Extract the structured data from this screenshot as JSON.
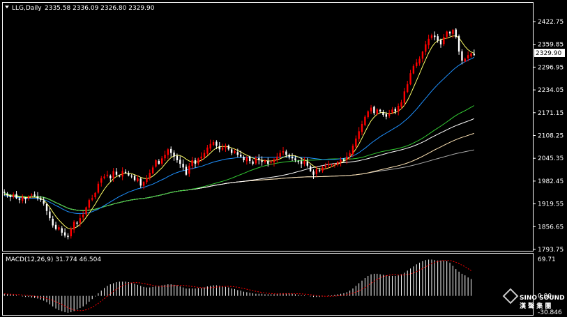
{
  "header": {
    "symbol": "LLG,Daily",
    "ohlc": "2335.58 2336.09 2326.80 2329.90"
  },
  "macd_header": "MACD(12,26,9) 31.774 46.504",
  "current_price_label": "2329.90",
  "logo": {
    "line1": "SINO SOUND",
    "line2": "漢 聲 集 團",
    "icon": "diamond-logo-icon"
  },
  "colors": {
    "background": "#000000",
    "up_candle": "#ff0000",
    "down_candle": "#ffffff",
    "ma_fast": "#ffff66",
    "ma_mid": "#1e90ff",
    "ma_slow1": "#33cc33",
    "ma_slow2": "#ffffff",
    "ma_long": "#ffe4b5",
    "ma_longest": "#aaaaaa",
    "macd_hist": "#ffffff",
    "macd_signal": "#ff0000"
  },
  "chart_data": [
    {
      "type": "candlestick",
      "title": "LLG,Daily",
      "ylim": [
        1793.75,
        2440
      ],
      "y_ticks": [
        "2422.75",
        "2359.85",
        "2296.95",
        "2234.05",
        "2171.15",
        "2108.25",
        "2045.35",
        "1982.45",
        "1919.55",
        "1856.65",
        "1793.75"
      ],
      "y_tick_values": [
        2422.75,
        2359.85,
        2296.95,
        2234.05,
        2171.15,
        2108.25,
        2045.35,
        1982.45,
        1919.55,
        1856.65,
        1793.75
      ],
      "closes": [
        1950,
        1943,
        1938,
        1945,
        1935,
        1930,
        1938,
        1932,
        1940,
        1945,
        1942,
        1935,
        1930,
        1920,
        1900,
        1880,
        1860,
        1850,
        1855,
        1840,
        1832,
        1828,
        1850,
        1870,
        1865,
        1880,
        1890,
        1910,
        1930,
        1935,
        1950,
        1975,
        1990,
        1995,
        2000,
        1990,
        2010,
        2000,
        1995,
        2010,
        2005,
        1998,
        1995,
        1985,
        1990,
        1970,
        1980,
        1990,
        2005,
        2020,
        2040,
        2030,
        2045,
        2055,
        2070,
        2060,
        2050,
        2040,
        2030,
        2020,
        2000,
        2025,
        2040,
        2030,
        2045,
        2050,
        2060,
        2075,
        2085,
        2090,
        2080,
        2070,
        2075,
        2080,
        2070,
        2060,
        2065,
        2055,
        2050,
        2040,
        2048,
        2038,
        2030,
        2045,
        2040,
        2035,
        2040,
        2030,
        2035,
        2042,
        2050,
        2060,
        2065,
        2055,
        2048,
        2045,
        2040,
        2035,
        2030,
        2038,
        2025,
        2010,
        2000,
        2015,
        2010,
        2020,
        2025,
        2030,
        2028,
        2030,
        2035,
        2040,
        2038,
        2050,
        2060,
        2080,
        2100,
        2120,
        2140,
        2160,
        2175,
        2185,
        2170,
        2180,
        2175,
        2165,
        2160,
        2170,
        2180,
        2175,
        2190,
        2200,
        2230,
        2250,
        2280,
        2300,
        2310,
        2320,
        2340,
        2360,
        2375,
        2385,
        2380,
        2370,
        2360,
        2380,
        2395,
        2390,
        2400,
        2380,
        2340,
        2315,
        2320,
        2330,
        2335,
        2329.9
      ],
      "ma_fast": [
        1945,
        1944,
        1942,
        1941,
        1940,
        1939,
        1938,
        1937,
        1937,
        1938,
        1938,
        1937,
        1935,
        1930,
        1921,
        1910,
        1897,
        1885,
        1875,
        1866,
        1858,
        1852,
        1850,
        1852,
        1856,
        1863,
        1871,
        1882,
        1894,
        1906,
        1919,
        1933,
        1947,
        1960,
        1971,
        1980,
        1989,
        1995,
        1999,
        2002,
        2004,
        2004,
        2003,
        2000,
        1997,
        1993,
        1990,
        1989,
        1991,
        1996,
        2003,
        2011,
        2019,
        2029,
        2039,
        2047,
        2052,
        2054,
        2053,
        2049,
        2043,
        2038,
        2035,
        2035,
        2036,
        2040,
        2045,
        2052,
        2060,
        2068,
        2074,
        2077,
        2078,
        2078,
        2077,
        2074,
        2071,
        2067,
        2063,
        2058,
        2054,
        2050,
        2046,
        2043,
        2041,
        2040,
        2039,
        2038,
        2038,
        2039,
        2041,
        2044,
        2048,
        2051,
        2053,
        2053,
        2052,
        2049,
        2045,
        2041,
        2037,
        2031,
        2024,
        2019,
        2016,
        2015,
        2016,
        2019,
        2022,
        2026,
        2029,
        2033,
        2037,
        2042,
        2049,
        2059,
        2071,
        2085,
        2101,
        2118,
        2134,
        2149,
        2159,
        2167,
        2171,
        2172,
        2170,
        2169,
        2170,
        2172,
        2176,
        2182,
        2192,
        2205,
        2222,
        2241,
        2260,
        2279,
        2299,
        2318,
        2336,
        2352,
        2363,
        2370,
        2373,
        2375,
        2377,
        2380,
        2383,
        2383,
        2378,
        2366,
        2354,
        2345,
        2339,
        2335
      ],
      "ma_mid": [
        1942,
        1941,
        1940,
        1939,
        1938,
        1937,
        1936,
        1935,
        1935,
        1935,
        1935,
        1934,
        1933,
        1931,
        1928,
        1924,
        1920,
        1915,
        1911,
        1906,
        1902,
        1898,
        1896,
        1894,
        1893,
        1893,
        1893,
        1894,
        1895,
        1898,
        1901,
        1905,
        1910,
        1915,
        1920,
        1925,
        1930,
        1935,
        1940,
        1944,
        1948,
        1952,
        1955,
        1958,
        1961,
        1963,
        1965,
        1968,
        1971,
        1974,
        1978,
        1982,
        1986,
        1990,
        1995,
        1999,
        2003,
        2006,
        2009,
        2011,
        2013,
        2015,
        2017,
        2019,
        2021,
        2023,
        2026,
        2029,
        2032,
        2035,
        2037,
        2039,
        2041,
        2043,
        2044,
        2045,
        2046,
        2047,
        2047,
        2048,
        2048,
        2048,
        2048,
        2048,
        2048,
        2048,
        2048,
        2048,
        2048,
        2048,
        2048,
        2048,
        2049,
        2049,
        2049,
        2049,
        2049,
        2049,
        2048,
        2048,
        2047,
        2046,
        2045,
        2044,
        2043,
        2042,
        2042,
        2042,
        2042,
        2042,
        2043,
        2044,
        2045,
        2047,
        2049,
        2052,
        2056,
        2061,
        2067,
        2073,
        2080,
        2087,
        2093,
        2099,
        2105,
        2110,
        2115,
        2120,
        2125,
        2130,
        2135,
        2141,
        2148,
        2155,
        2163,
        2172,
        2181,
        2191,
        2201,
        2211,
        2221,
        2231,
        2240,
        2249,
        2257,
        2265,
        2273,
        2281,
        2289,
        2296,
        2302,
        2307,
        2312,
        2316,
        2320,
        2324
      ],
      "macd_hist": [
        4,
        3,
        3,
        2,
        1,
        0,
        -1,
        -2,
        -2,
        -3,
        -4,
        -5,
        -7,
        -9,
        -12,
        -16,
        -20,
        -24,
        -27,
        -29,
        -31,
        -32,
        -31,
        -29,
        -26,
        -23,
        -20,
        -16,
        -11,
        -6,
        -1,
        5,
        10,
        15,
        19,
        22,
        24,
        26,
        27,
        27,
        27,
        26,
        25,
        23,
        21,
        19,
        17,
        16,
        16,
        17,
        18,
        19,
        20,
        21,
        22,
        22,
        21,
        20,
        18,
        16,
        14,
        14,
        14,
        14,
        15,
        15,
        16,
        18,
        19,
        20,
        20,
        19,
        18,
        17,
        16,
        14,
        13,
        11,
        10,
        8,
        7,
        6,
        5,
        4,
        4,
        4,
        3,
        3,
        3,
        3,
        4,
        5,
        5,
        5,
        5,
        4,
        3,
        2,
        1,
        1,
        0,
        -1,
        -2,
        -2,
        -2,
        -1,
        0,
        1,
        1,
        2,
        3,
        4,
        5,
        7,
        10,
        14,
        19,
        24,
        29,
        34,
        38,
        41,
        42,
        42,
        41,
        40,
        39,
        38,
        38,
        38,
        39,
        41,
        44,
        48,
        52,
        56,
        60,
        63,
        66,
        68,
        69,
        69,
        68,
        67,
        67,
        67,
        66,
        63,
        57,
        51,
        46,
        42,
        39,
        35,
        32
      ],
      "macd_ylim": [
        -30.846,
        69.71
      ],
      "macd_ticks": [
        "69.71",
        "0.00",
        "-30.846"
      ]
    }
  ]
}
